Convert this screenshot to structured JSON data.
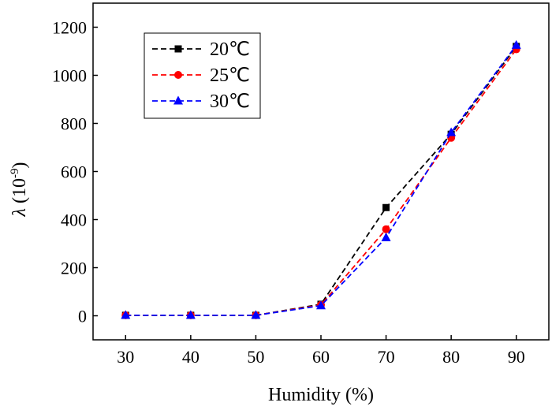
{
  "chart_data": {
    "type": "line",
    "x": [
      30,
      40,
      50,
      60,
      70,
      80,
      90
    ],
    "series": [
      {
        "name": "20℃",
        "values": [
          2,
          2,
          2,
          48,
          450,
          755,
          1120
        ],
        "color": "#000000",
        "marker": "square"
      },
      {
        "name": "25℃",
        "values": [
          2,
          2,
          2,
          45,
          360,
          740,
          1108
        ],
        "color": "#ff0000",
        "marker": "circle"
      },
      {
        "name": "30℃",
        "values": [
          2,
          2,
          2,
          42,
          325,
          762,
          1125
        ],
        "color": "#0000ff",
        "marker": "triangle"
      }
    ],
    "xlabel": "Humidity (%)",
    "ylabel_main": "λ",
    "ylabel_unit": " (10",
    "ylabel_exp": "-9",
    "ylabel_close": ")",
    "xlim": [
      25,
      95
    ],
    "ylim": [
      -100,
      1300
    ],
    "xticks": [
      30,
      40,
      50,
      60,
      70,
      80,
      90
    ],
    "yticks": [
      0,
      200,
      400,
      600,
      800,
      1000,
      1200
    ],
    "grid": false,
    "legend_position": "top-left",
    "line_style": "dashed"
  }
}
